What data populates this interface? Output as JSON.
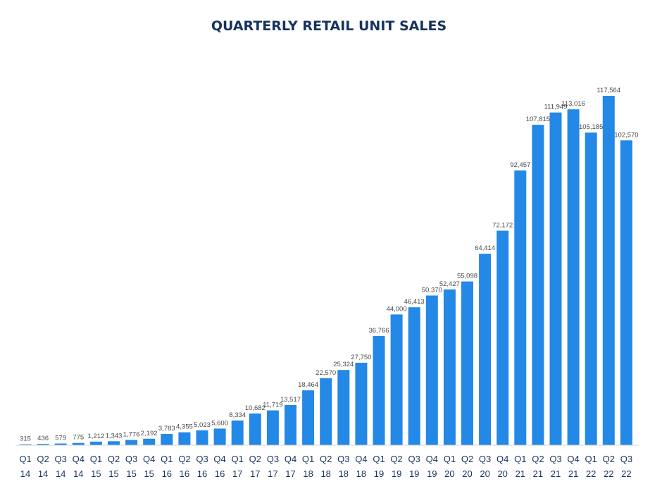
{
  "chart_data": {
    "type": "bar",
    "title": "QUARTERLY RETAIL UNIT SALES",
    "xlabel": "",
    "ylabel": "",
    "ylim": [
      0,
      120000
    ],
    "grid": false,
    "legend": "none",
    "bar_color": "#2388e6",
    "title_color": "#15335e",
    "categories": [
      [
        "Q1",
        "14"
      ],
      [
        "Q2",
        "14"
      ],
      [
        "Q3",
        "14"
      ],
      [
        "Q4",
        "14"
      ],
      [
        "Q1",
        "15"
      ],
      [
        "Q2",
        "15"
      ],
      [
        "Q3",
        "15"
      ],
      [
        "Q4",
        "15"
      ],
      [
        "Q1",
        "16"
      ],
      [
        "Q2",
        "16"
      ],
      [
        "Q3",
        "16"
      ],
      [
        "Q4",
        "16"
      ],
      [
        "Q1",
        "17"
      ],
      [
        "Q2",
        "17"
      ],
      [
        "Q3",
        "17"
      ],
      [
        "Q4",
        "17"
      ],
      [
        "Q1",
        "18"
      ],
      [
        "Q2",
        "18"
      ],
      [
        "Q3",
        "18"
      ],
      [
        "Q4",
        "18"
      ],
      [
        "Q1",
        "19"
      ],
      [
        "Q2",
        "19"
      ],
      [
        "Q3",
        "19"
      ],
      [
        "Q4",
        "19"
      ],
      [
        "Q1",
        "20"
      ],
      [
        "Q2",
        "20"
      ],
      [
        "Q3",
        "20"
      ],
      [
        "Q4",
        "20"
      ],
      [
        "Q1",
        "21"
      ],
      [
        "Q2",
        "21"
      ],
      [
        "Q3",
        "21"
      ],
      [
        "Q4",
        "21"
      ],
      [
        "Q1",
        "22"
      ],
      [
        "Q2",
        "22"
      ],
      [
        "Q3",
        "22"
      ]
    ],
    "values": [
      315,
      436,
      579,
      775,
      1212,
      1343,
      1776,
      2192,
      3783,
      4355,
      5023,
      5600,
      8334,
      10682,
      11719,
      13517,
      18464,
      22570,
      25324,
      27750,
      36766,
      44000,
      46413,
      50370,
      52427,
      55098,
      64414,
      72172,
      92457,
      107815,
      111949,
      113016,
      105185,
      117564,
      102570
    ],
    "value_labels": [
      "315",
      "436",
      "579",
      "775",
      "1,212",
      "1,343",
      "1,776",
      "2,192",
      "3,783",
      "4,355",
      "5,023",
      "5,600",
      "8,334",
      "10,682",
      "11,719",
      "13,517",
      "18,464",
      "22,570",
      "25,324",
      "27,750",
      "36,766",
      "44,000",
      "46,413",
      "50,370",
      "52,427",
      "55,098",
      "64,414",
      "72,172",
      "92,457",
      "107,815",
      "111,949",
      "113,016",
      "105,185",
      "117,564",
      "102,570"
    ]
  }
}
